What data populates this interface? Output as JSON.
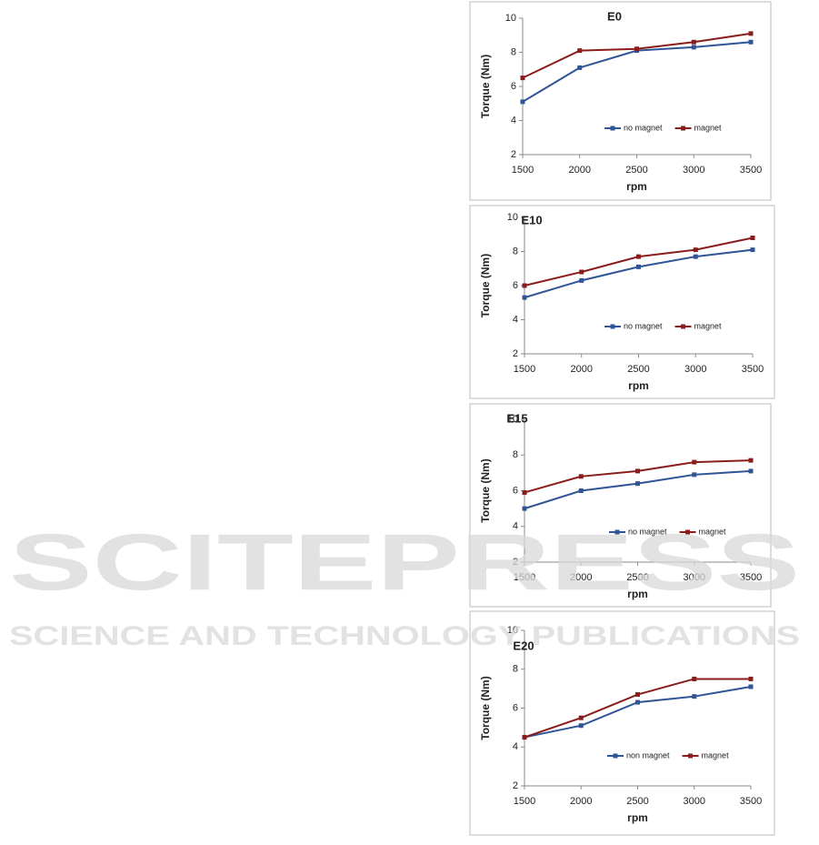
{
  "chart_data": [
    {
      "type": "line",
      "title": "E0",
      "xlabel": "rpm",
      "ylabel": "Torque (Nm)",
      "x": [
        1500,
        2000,
        2500,
        3000,
        3500
      ],
      "xlim": [
        1500,
        3500
      ],
      "xticks": [
        1500,
        2000,
        2500,
        3000,
        3500
      ],
      "ylim": [
        2,
        10
      ],
      "yticks": [
        2,
        4,
        6,
        8,
        10
      ],
      "series": [
        {
          "name": "no magnet",
          "color": "#2f5597",
          "values": [
            5.1,
            7.1,
            8.1,
            8.3,
            8.6
          ]
        },
        {
          "name": "magnet",
          "color": "#8b1c1c",
          "values": [
            6.5,
            8.1,
            8.2,
            8.6,
            9.1
          ]
        }
      ]
    },
    {
      "type": "line",
      "title": "E10",
      "xlabel": "rpm",
      "ylabel": "Torque (Nm)",
      "x": [
        1500,
        2000,
        2500,
        3000,
        3500
      ],
      "xlim": [
        1500,
        3500
      ],
      "xticks": [
        1500,
        2000,
        2500,
        3000,
        3500
      ],
      "ylim": [
        2,
        10
      ],
      "yticks": [
        2,
        4,
        6,
        8,
        10
      ],
      "series": [
        {
          "name": "no magnet",
          "color": "#2f5597",
          "values": [
            5.3,
            6.3,
            7.1,
            7.7,
            8.1
          ]
        },
        {
          "name": "magnet",
          "color": "#8b1c1c",
          "values": [
            6.0,
            6.8,
            7.7,
            8.1,
            8.8
          ]
        }
      ]
    },
    {
      "type": "line",
      "title": "E15",
      "xlabel": "rpm",
      "ylabel": "Torque (Nm)",
      "x": [
        1500,
        2000,
        2500,
        3000,
        3500
      ],
      "xlim": [
        1500,
        3500
      ],
      "xticks": [
        1500,
        2000,
        2500,
        3000,
        3500
      ],
      "ylim": [
        2,
        10
      ],
      "yticks": [
        2,
        4,
        6,
        8,
        10
      ],
      "series": [
        {
          "name": "no magnet",
          "color": "#2f5597",
          "values": [
            5.0,
            6.0,
            6.4,
            6.9,
            7.1
          ]
        },
        {
          "name": "magnet",
          "color": "#8b1c1c",
          "values": [
            5.9,
            6.8,
            7.1,
            7.6,
            7.7
          ]
        }
      ]
    },
    {
      "type": "line",
      "title": "E20",
      "xlabel": "rpm",
      "ylabel": "Torque (Nm)",
      "x": [
        1500,
        2000,
        2500,
        3000,
        3500
      ],
      "xlim": [
        1500,
        3500
      ],
      "xticks": [
        1500,
        2000,
        2500,
        3000,
        3500
      ],
      "ylim": [
        2,
        10
      ],
      "yticks": [
        2,
        4,
        6,
        8,
        10
      ],
      "series": [
        {
          "name": "non magnet",
          "color": "#2f5597",
          "values": [
            4.5,
            5.1,
            6.3,
            6.6,
            7.1
          ]
        },
        {
          "name": "magnet",
          "color": "#8b1c1c",
          "values": [
            4.5,
            5.5,
            6.7,
            7.5,
            7.5
          ]
        }
      ]
    }
  ],
  "watermark": {
    "title": "SCITEPRESS",
    "subtitle": "SCIENCE AND TECHNOLOGY PUBLICATIONS"
  }
}
